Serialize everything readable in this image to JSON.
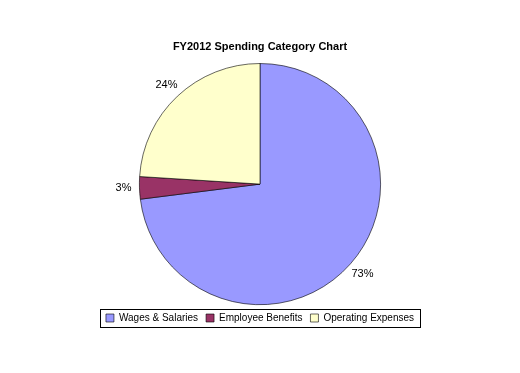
{
  "chart_data": {
    "type": "pie",
    "title": "FY2012 Spending Category Chart",
    "categories": [
      "Wages & Salaries",
      "Employee Benefits",
      "Operating Expenses"
    ],
    "values": [
      73,
      3,
      24
    ],
    "value_labels": [
      "73%",
      "3%",
      "24%"
    ],
    "colors": [
      "#9999ff",
      "#993366",
      "#ffffcc"
    ],
    "legend": "bottom",
    "data_labels": true
  }
}
